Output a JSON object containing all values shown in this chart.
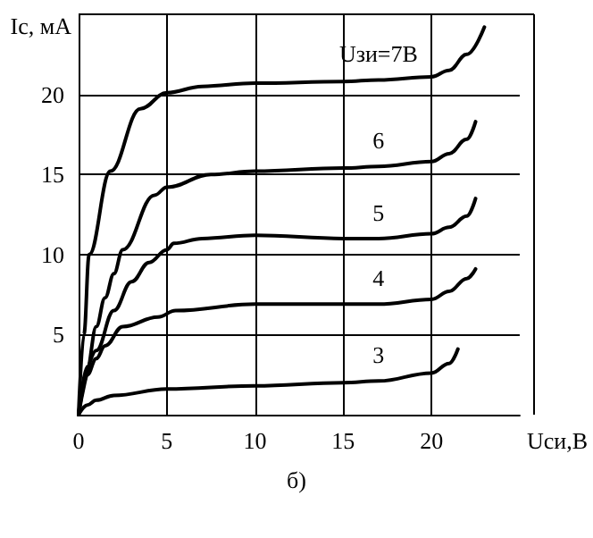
{
  "chart_data": {
    "type": "line",
    "xlabel": "Uси,В",
    "ylabel": "Iс, мА",
    "xlim": [
      0,
      25
    ],
    "ylim": [
      0,
      25
    ],
    "xticks": [
      0,
      5,
      10,
      15,
      20
    ],
    "yticks": [
      {
        "value": 0,
        "label": null
      },
      5,
      10,
      15,
      20
    ],
    "grid": true,
    "legend": false,
    "marker": "none",
    "line_style": "solid",
    "annotations": [
      "б)"
    ],
    "series": [
      {
        "name": "Uзи=7В",
        "color": "#000000",
        "x": [
          0,
          0.3,
          0.6,
          1.8,
          3.5,
          5,
          7,
          10,
          15,
          17,
          20,
          21,
          22,
          23
        ],
        "values": [
          0,
          5,
          10,
          15.2,
          19.1,
          20.1,
          20.5,
          20.7,
          20.8,
          20.9,
          21.1,
          21.5,
          22.5,
          24.2
        ]
      },
      {
        "name": "6",
        "color": "#000000",
        "x": [
          0,
          0.5,
          1,
          1.5,
          2,
          2.5,
          4.3,
          5,
          7.5,
          10,
          15,
          17,
          20,
          21,
          22,
          22.5
        ],
        "values": [
          0,
          3,
          5.5,
          7.3,
          8.8,
          10.3,
          13.7,
          14.2,
          15,
          15.2,
          15.4,
          15.5,
          15.8,
          16.3,
          17.2,
          18.3
        ]
      },
      {
        "name": "5",
        "color": "#000000",
        "x": [
          0,
          1,
          2,
          3,
          4,
          5,
          5.4,
          7,
          10,
          15,
          17,
          20,
          21,
          22,
          22.5
        ],
        "values": [
          0,
          4,
          6.5,
          8.3,
          9.5,
          10.3,
          10.7,
          11,
          11.2,
          11,
          11,
          11.3,
          11.7,
          12.4,
          13.5
        ]
      },
      {
        "name": "4",
        "color": "#000000",
        "x": [
          0,
          0.5,
          1,
          1.5,
          2.5,
          4.5,
          5.5,
          10,
          15,
          17,
          20,
          21,
          22,
          22.5
        ],
        "values": [
          0,
          2.5,
          3.5,
          4.3,
          5.5,
          6.1,
          6.5,
          6.9,
          6.9,
          6.9,
          7.2,
          7.7,
          8.5,
          9.1
        ]
      },
      {
        "name": "3",
        "color": "#000000",
        "x": [
          0,
          0.5,
          1,
          2,
          5,
          10,
          15,
          17,
          20,
          21,
          21.5
        ],
        "values": [
          0,
          0.6,
          0.9,
          1.2,
          1.6,
          1.8,
          2,
          2.1,
          2.6,
          3.2,
          4.1
        ]
      }
    ]
  }
}
